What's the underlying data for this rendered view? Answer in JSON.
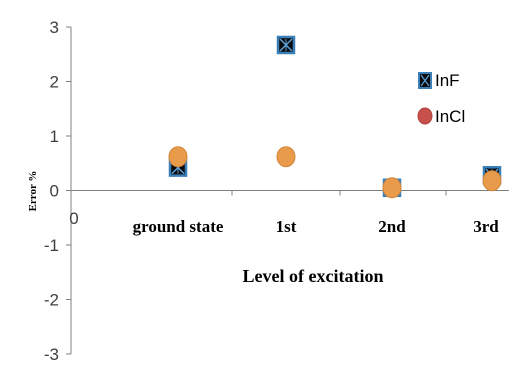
{
  "chart_data": {
    "type": "scatter",
    "title": "",
    "xlabel": "Level of excitation",
    "ylabel": "Error %",
    "ylim": [
      -3,
      3
    ],
    "yticks": [
      "3",
      "2",
      "1",
      "0",
      "-1",
      "-2",
      "-3"
    ],
    "x_origin_label": "0",
    "categories": [
      "ground state",
      "1st",
      "2nd",
      "3rd"
    ],
    "grid": false,
    "legend_position": "right",
    "series": [
      {
        "name": "InF",
        "marker": "square-x",
        "color": "#3b7fb8",
        "values": [
          0.42,
          2.67,
          0.05,
          0.28
        ]
      },
      {
        "name": "InCl",
        "marker": "circle",
        "color": "#e89b4a",
        "values": [
          0.62,
          0.62,
          0.05,
          0.18
        ]
      }
    ]
  }
}
